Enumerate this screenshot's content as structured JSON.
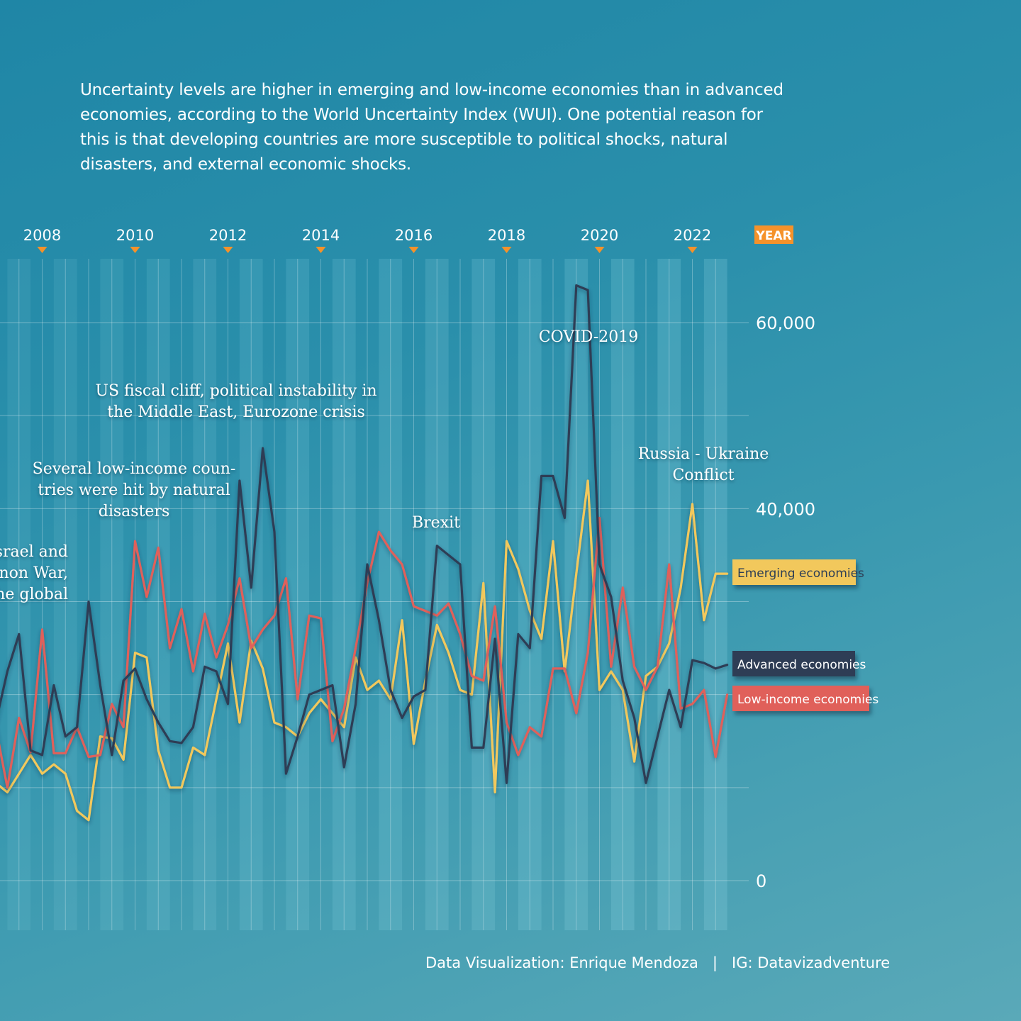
{
  "intro_text": "Uncertainty levels are higher in emerging and low-income economies than in advanced economies, according to the World Uncertainty Index (WUI). One potential reason for this is that developing countries are more susceptible to political shocks, natural disasters, and external economic shocks.",
  "credit": "Data Visualization: Enrique Mendoza   |   IG: Datavizadventure",
  "colors": {
    "advanced": "#2d3e55",
    "emerging": "#f2c85b",
    "low_income": "#e0605a",
    "year_marker": "#f5922a",
    "grid": "#ffffff"
  },
  "chart_data": {
    "type": "line",
    "x_label_tag": "YEAR",
    "x_tick_labels": [
      "2008",
      "2010",
      "2012",
      "2014",
      "2016",
      "2018",
      "2020",
      "2022"
    ],
    "y_tick_labels": [
      "60,000",
      "40,000",
      "0"
    ],
    "ylim": [
      0,
      68000
    ],
    "xlim": [
      2007.0,
      2022.75
    ],
    "grid": true,
    "legend": "right",
    "series": [
      {
        "key": "advanced",
        "name": "Advanced economies",
        "x": [
          2007.0,
          2007.25,
          2007.5,
          2007.75,
          2008.0,
          2008.25,
          2008.5,
          2008.75,
          2009.0,
          2009.25,
          2009.5,
          2009.75,
          2010.0,
          2010.25,
          2010.5,
          2010.75,
          2011.0,
          2011.25,
          2011.5,
          2011.75,
          2012.0,
          2012.25,
          2012.5,
          2012.75,
          2013.0,
          2013.25,
          2013.5,
          2013.75,
          2014.0,
          2014.25,
          2014.5,
          2014.75,
          2015.0,
          2015.25,
          2015.5,
          2015.75,
          2016.0,
          2016.25,
          2016.5,
          2016.75,
          2017.0,
          2017.25,
          2017.5,
          2017.75,
          2018.0,
          2018.25,
          2018.5,
          2018.75,
          2019.0,
          2019.25,
          2019.5,
          2019.75,
          2020.0,
          2020.25,
          2020.5,
          2020.75,
          2021.0,
          2021.25,
          2021.5,
          2021.75,
          2022.0,
          2022.25,
          2022.5,
          2022.75
        ],
        "values": [
          17000,
          22500,
          26500,
          14000,
          13500,
          21000,
          15500,
          16500,
          30000,
          21000,
          13500,
          21500,
          22800,
          19500,
          17000,
          15000,
          14800,
          16500,
          23000,
          22500,
          19000,
          43000,
          31500,
          46500,
          37500,
          11500,
          15500,
          20000,
          20500,
          21000,
          12200,
          19000,
          34000,
          28000,
          20500,
          17500,
          19800,
          20500,
          36000,
          35000,
          34000,
          14300,
          14300,
          26000,
          10500,
          26500,
          25000,
          43500,
          43500,
          39000,
          64000,
          63500,
          34000,
          30500,
          21500,
          17500,
          10500,
          15500,
          20500,
          16500,
          23700,
          23400,
          22800,
          23200
        ]
      },
      {
        "key": "emerging",
        "name": "Emerging economies",
        "x": [
          2007.0,
          2007.25,
          2007.5,
          2007.75,
          2008.0,
          2008.25,
          2008.5,
          2008.75,
          2009.0,
          2009.25,
          2009.5,
          2009.75,
          2010.0,
          2010.25,
          2010.5,
          2010.75,
          2011.0,
          2011.25,
          2011.5,
          2011.75,
          2012.0,
          2012.25,
          2012.5,
          2012.75,
          2013.0,
          2013.25,
          2013.5,
          2013.75,
          2014.0,
          2014.25,
          2014.5,
          2014.75,
          2015.0,
          2015.25,
          2015.5,
          2015.75,
          2016.0,
          2016.25,
          2016.5,
          2016.75,
          2017.0,
          2017.25,
          2017.5,
          2017.75,
          2018.0,
          2018.25,
          2018.5,
          2018.75,
          2019.0,
          2019.25,
          2019.5,
          2019.75,
          2020.0,
          2020.25,
          2020.5,
          2020.75,
          2021.0,
          2021.25,
          2021.5,
          2021.75,
          2022.0,
          2022.25,
          2022.5,
          2022.75
        ],
        "values": [
          10500,
          9500,
          11500,
          13500,
          11500,
          12500,
          11500,
          7500,
          6500,
          15500,
          15300,
          13000,
          24500,
          24000,
          14000,
          10000,
          10000,
          14300,
          13500,
          19500,
          25500,
          17000,
          25800,
          22800,
          17000,
          16500,
          15500,
          18000,
          19500,
          18000,
          16500,
          24000,
          20500,
          21500,
          19500,
          28000,
          14700,
          21500,
          27500,
          24500,
          20500,
          20000,
          32000,
          9500,
          36500,
          33500,
          29000,
          26000,
          36500,
          22500,
          33000,
          43000,
          20500,
          22500,
          20500,
          12800,
          22000,
          23000,
          25500,
          31500,
          40500,
          28000,
          33000,
          33000
        ]
      },
      {
        "key": "low_income",
        "name": "Low-income economies",
        "x": [
          2007.0,
          2007.25,
          2007.5,
          2007.75,
          2008.0,
          2008.25,
          2008.5,
          2008.75,
          2009.0,
          2009.25,
          2009.5,
          2009.75,
          2010.0,
          2010.25,
          2010.5,
          2010.75,
          2011.0,
          2011.25,
          2011.5,
          2011.75,
          2012.0,
          2012.25,
          2012.5,
          2012.75,
          2013.0,
          2013.25,
          2013.5,
          2013.75,
          2014.0,
          2014.25,
          2014.5,
          2014.75,
          2015.0,
          2015.25,
          2015.5,
          2015.75,
          2016.0,
          2016.25,
          2016.5,
          2016.75,
          2017.0,
          2017.25,
          2017.5,
          2017.75,
          2018.0,
          2018.25,
          2018.5,
          2018.75,
          2019.0,
          2019.25,
          2019.5,
          2019.75,
          2020.0,
          2020.25,
          2020.5,
          2020.75,
          2021.0,
          2021.25,
          2021.5,
          2021.75,
          2022.0,
          2022.25,
          2022.5,
          2022.75
        ],
        "values": [
          16500,
          10000,
          17500,
          13800,
          27000,
          13700,
          13700,
          16500,
          13300,
          13500,
          19000,
          16500,
          36500,
          30500,
          35800,
          25000,
          29200,
          22500,
          28700,
          24000,
          27500,
          32500,
          25000,
          27000,
          28500,
          32500,
          19500,
          28500,
          28200,
          15000,
          18500,
          25000,
          32000,
          37500,
          35500,
          34000,
          29500,
          29000,
          28500,
          29800,
          26500,
          22000,
          21500,
          29500,
          17000,
          13500,
          16500,
          15500,
          22800,
          22800,
          18000,
          24500,
          39000,
          23000,
          31500,
          23000,
          20500,
          23000,
          34000,
          18500,
          19000,
          20500,
          13300,
          20000
        ]
      }
    ],
    "annotations": [
      {
        "key": "israel",
        "lines": [
          "Israel and",
          "Lebanon War,",
          "the global"
        ]
      },
      {
        "key": "natural",
        "lines": [
          "Several low-income coun-",
          "tries were hit by natural",
          "disasters"
        ]
      },
      {
        "key": "fiscal",
        "lines": [
          "US fiscal cliff, political instability in",
          "the Middle East, Eurozone crisis"
        ]
      },
      {
        "key": "brexit",
        "lines": [
          "Brexit"
        ]
      },
      {
        "key": "covid",
        "lines": [
          "COVID-2019"
        ]
      },
      {
        "key": "russia",
        "lines": [
          "Russia - Ukraine",
          "Conflict"
        ]
      }
    ]
  }
}
